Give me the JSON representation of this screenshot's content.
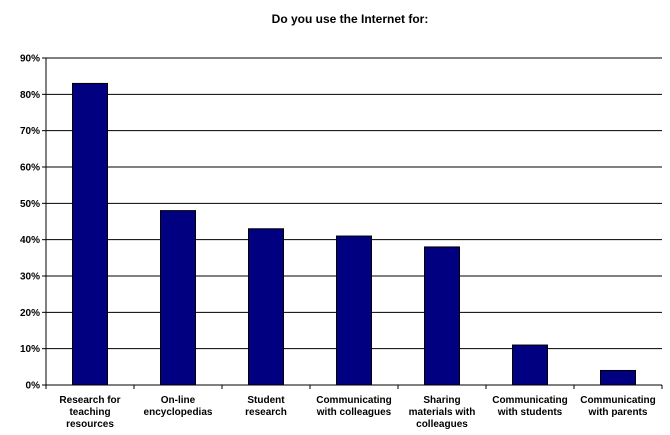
{
  "chart_data": {
    "type": "bar",
    "title": "Do you use the Internet for:",
    "categories": [
      [
        "Research for",
        "teaching",
        "resources"
      ],
      [
        "On-line",
        "encyclopedias"
      ],
      [
        "Student",
        "research"
      ],
      [
        "Communicating",
        "with colleagues"
      ],
      [
        "Sharing",
        "materials with",
        "colleagues"
      ],
      [
        "Communicating",
        "with students"
      ],
      [
        "Communicating",
        "with parents"
      ]
    ],
    "values": [
      83,
      48,
      43,
      41,
      38,
      11,
      4
    ],
    "ylim": [
      0,
      90
    ],
    "yticks": [
      "0%",
      "10%",
      "20%",
      "30%",
      "40%",
      "50%",
      "60%",
      "70%",
      "80%",
      "90%"
    ],
    "grid": true,
    "bar_color": "#000080",
    "xlabel": "",
    "ylabel": ""
  }
}
